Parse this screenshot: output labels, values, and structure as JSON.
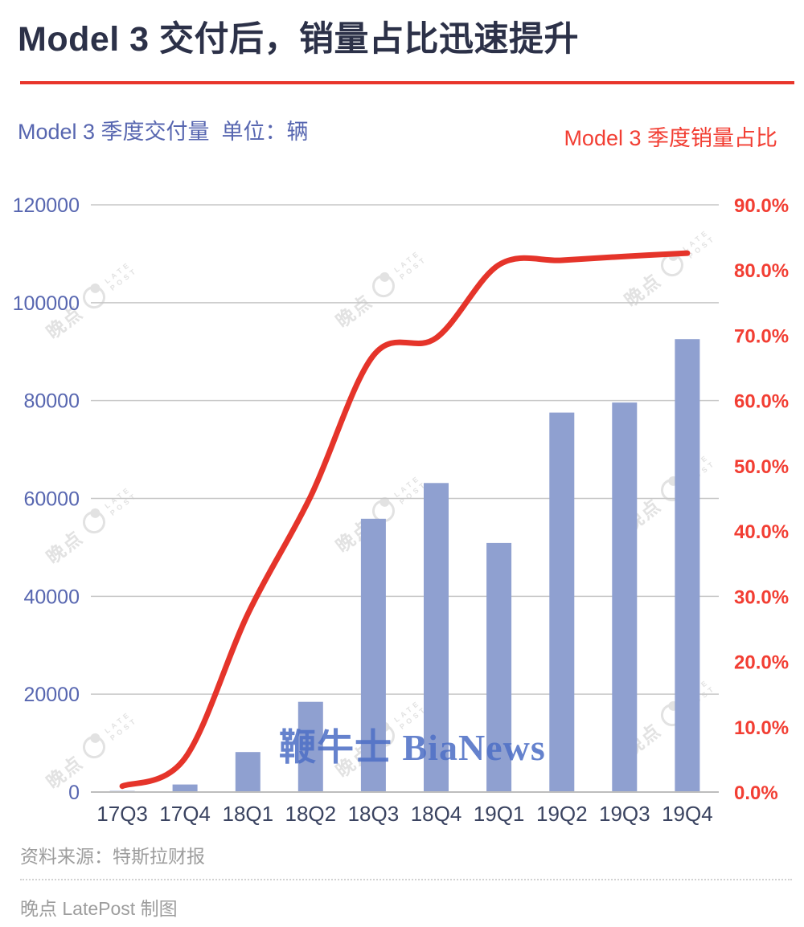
{
  "header": {
    "title": "Model 3 交付后，销量占比迅速提升",
    "left_axis_title": "Model 3 季度交付量  单位：辆",
    "right_axis_title": "Model 3 季度销量占比"
  },
  "chart_data": {
    "type": "combo",
    "categories": [
      "17Q3",
      "17Q4",
      "18Q1",
      "18Q2",
      "18Q3",
      "18Q4",
      "19Q1",
      "19Q2",
      "19Q3",
      "19Q4"
    ],
    "series": [
      {
        "name": "Model 3 季度交付量（辆）",
        "type": "bar",
        "axis": "left",
        "color": "#8fa0d0",
        "values": [
          222,
          1550,
          8180,
          18440,
          55840,
          63150,
          50900,
          77550,
          79600,
          92550
        ]
      },
      {
        "name": "Model 3 季度销量占比（%）",
        "type": "line",
        "axis": "right",
        "color": "#e5342a",
        "values": [
          0.9,
          5.2,
          27.3,
          45.3,
          66.9,
          69.6,
          80.8,
          81.5,
          82.1,
          82.6
        ]
      }
    ],
    "y_left": {
      "min": 0,
      "max": 120000,
      "step": 20000,
      "ticks": [
        "0",
        "20000",
        "40000",
        "60000",
        "80000",
        "100000",
        "120000"
      ]
    },
    "y_right": {
      "min": 0,
      "max": 90,
      "step": 10,
      "ticks": [
        "0.0%",
        "10.0%",
        "20.0%",
        "30.0%",
        "40.0%",
        "50.0%",
        "60.0%",
        "70.0%",
        "80.0%",
        "90.0%"
      ]
    },
    "grid": "horizontal gridlines at every 20000 of left axis",
    "legend": "none"
  },
  "colors": {
    "title": "#2c3148",
    "rule_red": "#e8352b",
    "line_red": "#e5342a",
    "right_ticks_red": "#f23e33",
    "left_ticks_blue": "#5766b0",
    "x_labels_navy": "#3a4360",
    "bar_blue": "#8fa0d0",
    "gridline_gray": "#c7c7c7",
    "footer_gray": "#9d9d9d",
    "watermark_gray": "#e2e2e2",
    "watermark_blue": "#4f70c6"
  },
  "watermarks": {
    "gray": {
      "cjk": "晚点",
      "line1": "LATE",
      "line2": "POST"
    },
    "center_text": "鞭牛士 BiaNews"
  },
  "footer": {
    "source": "资料来源：特斯拉财报",
    "credit": "晚点 LatePost 制图"
  }
}
